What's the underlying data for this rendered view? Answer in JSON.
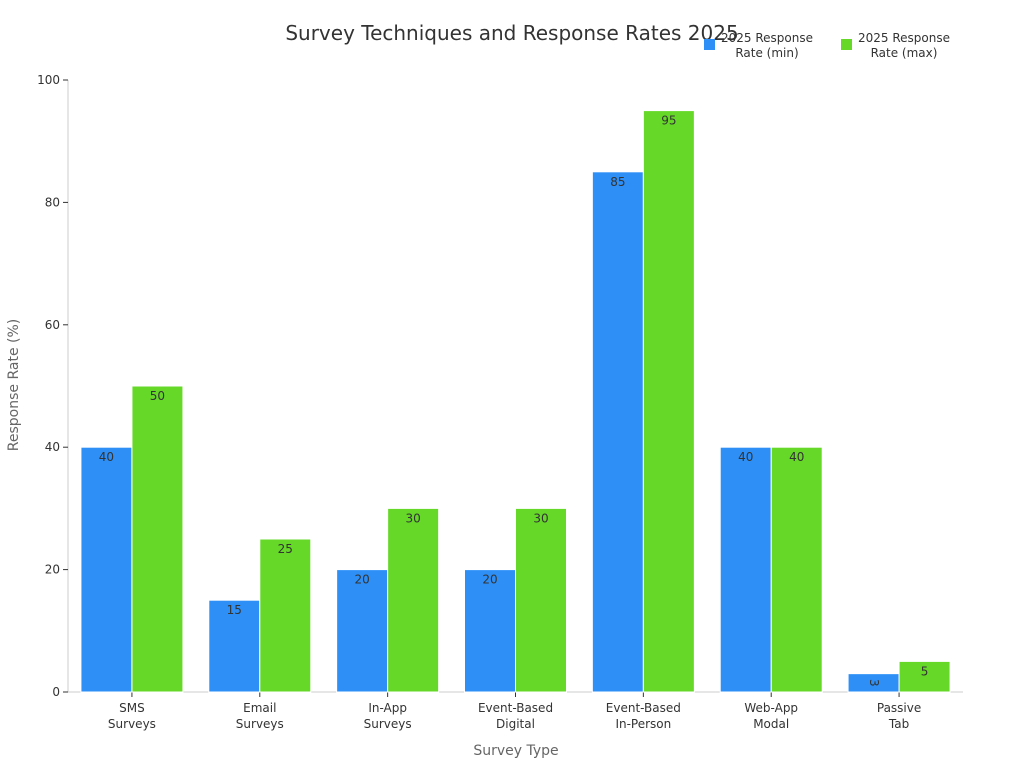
{
  "chart_data": {
    "type": "bar",
    "title": "Survey Techniques and Response Rates 2025",
    "xlabel": "Survey Type",
    "ylabel": "Response Rate (%)",
    "ylim": [
      0,
      100
    ],
    "yticks": [
      0,
      20,
      40,
      60,
      80,
      100
    ],
    "grid": false,
    "legend_position": "top-right",
    "categories": [
      [
        "SMS",
        "Surveys"
      ],
      [
        "Email",
        "Surveys"
      ],
      [
        "In-App",
        "Surveys"
      ],
      [
        "Event-Based",
        "Digital"
      ],
      [
        "Event-Based",
        "In-Person"
      ],
      [
        "Web-App",
        "Modal"
      ],
      [
        "Passive",
        "Tab"
      ]
    ],
    "series": [
      {
        "name": [
          "2025 Response",
          "Rate (min)"
        ],
        "color": "#2e90f7",
        "values": [
          40,
          15,
          20,
          20,
          85,
          40,
          3
        ]
      },
      {
        "name": [
          "2025 Response",
          "Rate (max)"
        ],
        "color": "#66d928",
        "values": [
          50,
          25,
          30,
          30,
          95,
          40,
          5
        ]
      }
    ]
  }
}
